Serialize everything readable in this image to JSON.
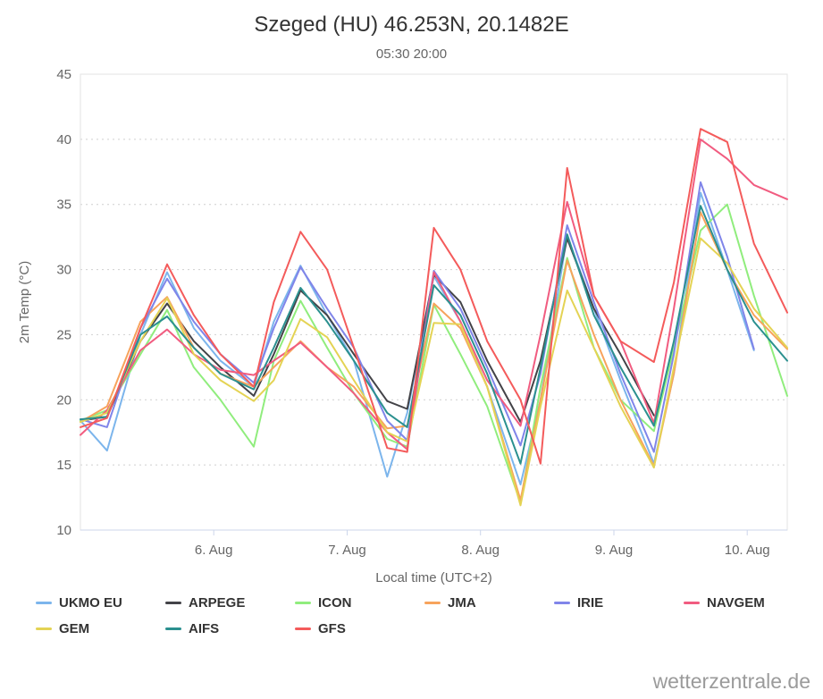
{
  "page": {
    "watermark": "wetterzentrale.de"
  },
  "chart_data": {
    "type": "line",
    "title": "Szeged (HU) 46.253N, 20.1482E",
    "subtitle": "05:30 20:00",
    "xlabel": "Local time (UTC+2)",
    "ylabel": "2m Temp (°C)",
    "xlim": [
      5.0,
      10.3
    ],
    "ylim": [
      10,
      45
    ],
    "grid": "horizontal-dotted",
    "legend_position": "bottom",
    "y_ticks": [
      10,
      15,
      20,
      25,
      30,
      35,
      40,
      45
    ],
    "x_ticks": [
      {
        "value": 6,
        "label": "6. Aug"
      },
      {
        "value": 7,
        "label": "7. Aug"
      },
      {
        "value": 8,
        "label": "8. Aug"
      },
      {
        "value": 9,
        "label": "9. Aug"
      },
      {
        "value": 10,
        "label": "10. Aug"
      }
    ],
    "x_unit": "day-of-august-fraction-local-time",
    "x": [
      5.0,
      5.2,
      5.45,
      5.65,
      5.85,
      6.05,
      6.3,
      6.45,
      6.65,
      6.85,
      7.05,
      7.3,
      7.45,
      7.65,
      7.85,
      8.05,
      8.3,
      8.45,
      8.65,
      8.85,
      9.05,
      9.3,
      9.45,
      9.65,
      9.85,
      10.05,
      10.3
    ],
    "series": [
      {
        "name": "UKMO EU",
        "color": "#7cb5ec",
        "values": [
          18.4,
          16.1,
          25.0,
          29.8,
          25.5,
          23.0,
          21.0,
          26.0,
          30.3,
          26.5,
          23.0,
          14.1,
          19.0,
          29.5,
          26.0,
          21.0,
          13.5,
          20.0,
          32.6,
          27.0,
          21.5,
          15.1,
          22.0,
          35.9,
          30.0,
          23.8,
          null
        ]
      },
      {
        "name": "ARPEGE",
        "color": "#434348",
        "values": [
          18.4,
          18.7,
          24.5,
          27.4,
          24.5,
          22.5,
          20.3,
          23.5,
          28.4,
          26.5,
          23.5,
          19.9,
          19.3,
          29.6,
          27.5,
          23.0,
          18.3,
          23.0,
          32.4,
          27.0,
          23.5,
          18.8,
          null,
          null,
          null,
          null,
          null
        ]
      },
      {
        "name": "ICON",
        "color": "#90ed7d",
        "values": [
          18.4,
          19.2,
          23.5,
          26.9,
          22.5,
          20.0,
          16.4,
          23.0,
          27.6,
          24.0,
          20.5,
          17.0,
          16.4,
          27.3,
          23.5,
          19.5,
          12.1,
          21.0,
          30.9,
          24.0,
          20.0,
          17.6,
          24.0,
          33.0,
          35.0,
          28.0,
          20.3
        ]
      },
      {
        "name": "JMA",
        "color": "#f7a35c",
        "values": [
          18.3,
          19.5,
          26.0,
          27.9,
          24.0,
          22.0,
          21.0,
          22.5,
          24.5,
          22.5,
          21.0,
          17.8,
          18.0,
          27.4,
          25.5,
          21.0,
          12.3,
          20.0,
          30.7,
          25.0,
          20.0,
          14.9,
          22.0,
          34.4,
          30.0,
          26.5,
          23.9
        ]
      },
      {
        "name": "IRIE",
        "color": "#8085e9",
        "values": [
          18.5,
          17.9,
          25.5,
          29.3,
          26.0,
          23.5,
          21.3,
          25.5,
          30.2,
          27.0,
          24.0,
          18.4,
          16.9,
          29.9,
          27.0,
          22.5,
          16.5,
          22.0,
          33.4,
          27.5,
          22.0,
          16.0,
          23.5,
          36.7,
          31.0,
          23.9,
          null
        ]
      },
      {
        "name": "NAVGEM",
        "color": "#f15c80",
        "values": [
          17.3,
          19.2,
          23.8,
          25.4,
          23.5,
          22.3,
          21.9,
          23.0,
          24.4,
          22.5,
          20.5,
          17.5,
          16.2,
          29.8,
          26.0,
          21.5,
          18.0,
          25.0,
          35.2,
          28.0,
          24.5,
          18.2,
          27.0,
          40.0,
          38.5,
          36.5,
          35.4
        ]
      },
      {
        "name": "GEM",
        "color": "#e4d354",
        "values": [
          18.3,
          19.0,
          24.5,
          27.8,
          23.5,
          21.5,
          19.9,
          21.5,
          26.2,
          24.8,
          21.5,
          17.5,
          16.8,
          25.9,
          25.8,
          21.0,
          11.9,
          19.5,
          28.4,
          24.0,
          19.5,
          14.8,
          22.5,
          32.4,
          30.5,
          27.0,
          24.0
        ]
      },
      {
        "name": "AIFS",
        "color": "#2b908f",
        "values": [
          18.5,
          18.7,
          25.0,
          26.4,
          24.0,
          22.0,
          20.8,
          24.0,
          28.6,
          26.0,
          23.0,
          19.0,
          17.9,
          28.8,
          26.5,
          22.0,
          15.1,
          22.5,
          32.7,
          26.5,
          22.5,
          18.0,
          24.5,
          34.9,
          30.0,
          26.0,
          23.0
        ]
      },
      {
        "name": "GFS",
        "color": "#f45b5b",
        "values": [
          17.9,
          18.6,
          25.5,
          30.4,
          26.5,
          23.5,
          21.0,
          27.5,
          32.9,
          30.0,
          24.0,
          16.3,
          16.0,
          33.2,
          30.0,
          24.5,
          20.0,
          15.1,
          37.8,
          28.0,
          24.5,
          22.9,
          29.0,
          40.8,
          39.8,
          32.0,
          26.7
        ]
      }
    ]
  }
}
